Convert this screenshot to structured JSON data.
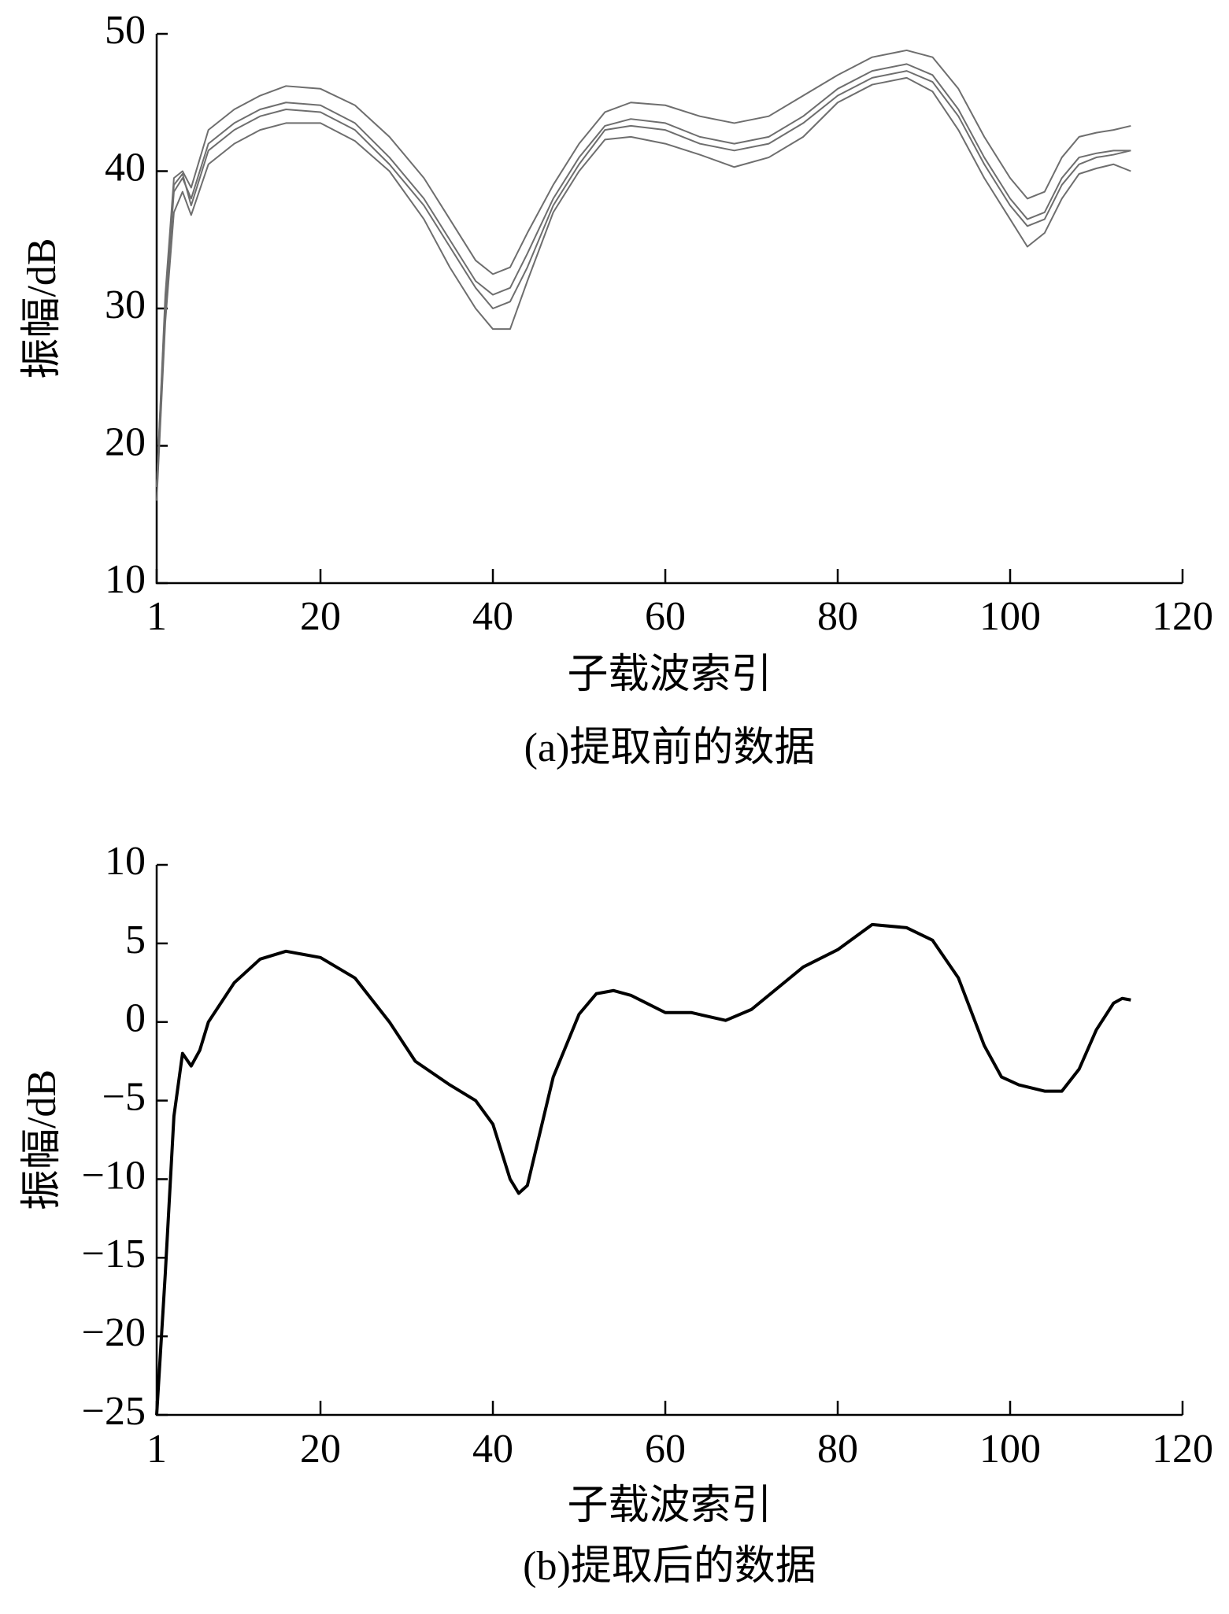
{
  "chart_data": [
    {
      "type": "line",
      "ylabel": "振幅/dB",
      "xlabel": "子载波索引",
      "caption": "(a)提取前的数据",
      "xlim": [
        1,
        120
      ],
      "xticks": [
        1,
        20,
        40,
        60,
        80,
        100,
        120
      ],
      "ylim": [
        10,
        50
      ],
      "yticks": [
        10,
        20,
        30,
        40,
        50
      ],
      "x": [
        1,
        2,
        3,
        4,
        5,
        7,
        10,
        13,
        16,
        20,
        24,
        28,
        32,
        35,
        38,
        40,
        42,
        44,
        47,
        50,
        53,
        56,
        60,
        64,
        68,
        72,
        76,
        80,
        84,
        88,
        91,
        94,
        97,
        100,
        102,
        104,
        106,
        108,
        110,
        112,
        114
      ],
      "series": [
        {
          "color": "#6e6e6e",
          "values": [
            17,
            30,
            38.5,
            39.5,
            38,
            42,
            43.5,
            44.5,
            45,
            44.8,
            43.5,
            41,
            38,
            35,
            32,
            31,
            31.5,
            34,
            38,
            41,
            43.3,
            43.8,
            43.5,
            42.5,
            42,
            42.5,
            44,
            46,
            47.3,
            47.8,
            47,
            44.5,
            41,
            38,
            36.5,
            37,
            39.5,
            41,
            41.3,
            41.5,
            41.5
          ]
        },
        {
          "color": "#6e6e6e",
          "values": [
            17,
            31,
            39.5,
            40,
            38.8,
            43,
            44.5,
            45.5,
            46.2,
            46,
            44.8,
            42.5,
            39.5,
            36.5,
            33.5,
            32.5,
            33,
            35.5,
            39,
            42,
            44.3,
            45,
            44.8,
            44,
            43.5,
            44,
            45.5,
            47,
            48.3,
            48.8,
            48.3,
            46,
            42.5,
            39.5,
            38,
            38.5,
            41,
            42.5,
            42.8,
            43,
            43.3
          ]
        },
        {
          "color": "#6e6e6e",
          "values": [
            16,
            29,
            37,
            38.5,
            36.8,
            40.5,
            42,
            43,
            43.5,
            43.5,
            42.2,
            40,
            36.5,
            33,
            30,
            28.5,
            28.5,
            32,
            37,
            40,
            42.3,
            42.5,
            42,
            41.2,
            40.3,
            41,
            42.5,
            45,
            46.3,
            46.8,
            45.8,
            43,
            39.5,
            36.5,
            34.5,
            35.5,
            38,
            39.8,
            40.2,
            40.5,
            40
          ]
        },
        {
          "color": "#6e6e6e",
          "values": [
            17,
            30.5,
            39,
            39.8,
            37.5,
            41.5,
            43,
            44,
            44.5,
            44.3,
            43,
            40.5,
            37.5,
            34.5,
            31.5,
            30,
            30.5,
            33,
            37.5,
            40.5,
            43,
            43.3,
            43,
            42,
            41.5,
            42,
            43.5,
            45.5,
            46.8,
            47.3,
            46.5,
            44,
            40.5,
            37.5,
            36,
            36.5,
            39,
            40.5,
            41,
            41.2,
            41.5
          ]
        }
      ]
    },
    {
      "type": "line",
      "ylabel": "振幅/dB",
      "xlabel": "子载波索引",
      "caption": "(b)提取后的数据",
      "xlim": [
        1,
        120
      ],
      "xticks": [
        1,
        20,
        40,
        60,
        80,
        100,
        120
      ],
      "ylim": [
        -25,
        10
      ],
      "yticks": [
        {
          "value": -25,
          "label": "−25"
        },
        {
          "value": -20,
          "label": "−20"
        },
        {
          "value": -15,
          "label": "−15"
        },
        {
          "value": -10,
          "label": "−10"
        },
        {
          "value": -5,
          "label": "−5"
        },
        0,
        5,
        10
      ],
      "x": [
        1,
        2,
        3,
        4,
        5,
        6,
        7,
        10,
        13,
        16,
        20,
        24,
        28,
        31,
        35,
        38,
        40,
        42,
        43,
        44,
        47,
        50,
        52,
        54,
        56,
        60,
        63,
        67,
        70,
        76,
        80,
        84,
        88,
        91,
        94,
        97,
        99,
        101,
        104,
        106,
        108,
        110,
        112,
        113,
        114
      ],
      "series": [
        {
          "color": "#000000",
          "values": [
            -25,
            -16,
            -6,
            -2,
            -2.8,
            -1.8,
            0,
            2.5,
            4,
            4.5,
            4.1,
            2.8,
            0,
            -2.5,
            -4,
            -5,
            -6.5,
            -10,
            -10.9,
            -10.4,
            -3.5,
            0.5,
            1.8,
            2,
            1.7,
            0.6,
            0.6,
            0.1,
            0.8,
            3.5,
            4.6,
            6.2,
            6,
            5.2,
            2.8,
            -1.5,
            -3.5,
            -4,
            -4.4,
            -4.4,
            -3,
            -0.5,
            1.2,
            1.5,
            1.4
          ]
        }
      ]
    }
  ]
}
